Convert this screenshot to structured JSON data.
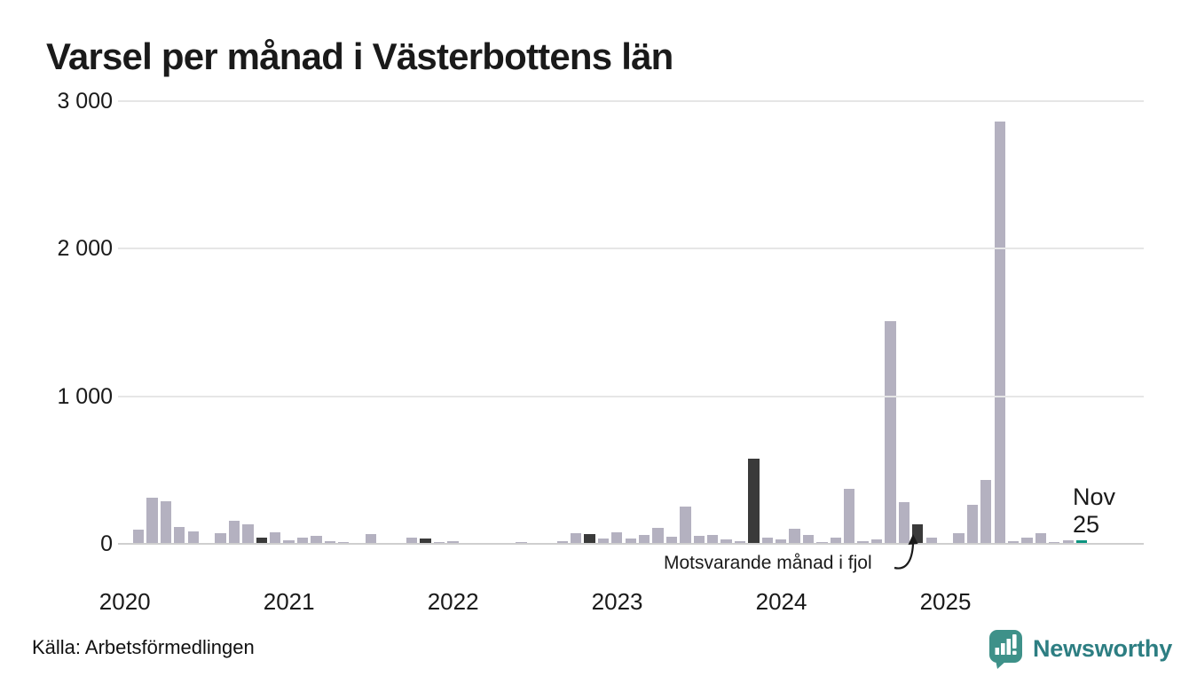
{
  "chart_data": {
    "type": "bar",
    "title": "Varsel per månad i Västerbottens län",
    "source": "Källa: Arbetsförmedlingen",
    "brand": "Newsworthy",
    "ylim": [
      0,
      3000
    ],
    "grid": "horizontal",
    "y_axis": {
      "max": 3000,
      "ticks": [
        {
          "value": 3000,
          "label": "3 000"
        },
        {
          "value": 2000,
          "label": "2 000"
        },
        {
          "value": 1000,
          "label": "1 000"
        },
        {
          "value": 0,
          "label": "0"
        }
      ]
    },
    "x_axis": {
      "total_slots": 75,
      "year_ticks": [
        {
          "label": "2020",
          "slot": 0
        },
        {
          "label": "2021",
          "slot": 12
        },
        {
          "label": "2022",
          "slot": 24
        },
        {
          "label": "2023",
          "slot": 36
        },
        {
          "label": "2024",
          "slot": 48
        },
        {
          "label": "2025",
          "slot": 60
        }
      ]
    },
    "annotation": {
      "text": "Motsvarande månad i fjol"
    },
    "current_label": {
      "line1": "Nov",
      "line2": "25"
    },
    "colors": {
      "bar_default": "#b4b1c0",
      "bar_november": "#3a3a3a",
      "bar_current": "#0c9480",
      "gridline": "#e6e6e6",
      "baseline": "#cfcfcf",
      "brand_teal": "#3e9189",
      "brand_text": "#2d7e82",
      "text": "#1a1a1a"
    },
    "months": [
      {
        "label": "Jan 2020",
        "value": 0,
        "kind": "normal"
      },
      {
        "label": "Feb 2020",
        "value": 95,
        "kind": "normal"
      },
      {
        "label": "Mar 2020",
        "value": 310,
        "kind": "normal"
      },
      {
        "label": "Apr 2020",
        "value": 290,
        "kind": "normal"
      },
      {
        "label": "Maj 2020",
        "value": 115,
        "kind": "normal"
      },
      {
        "label": "Jun 2020",
        "value": 85,
        "kind": "normal"
      },
      {
        "label": "Jul 2020",
        "value": 0,
        "kind": "normal"
      },
      {
        "label": "Aug 2020",
        "value": 75,
        "kind": "normal"
      },
      {
        "label": "Sep 2020",
        "value": 155,
        "kind": "normal"
      },
      {
        "label": "Okt 2020",
        "value": 130,
        "kind": "normal"
      },
      {
        "label": "Nov 2020",
        "value": 40,
        "kind": "nov"
      },
      {
        "label": "Dec 2020",
        "value": 80,
        "kind": "normal"
      },
      {
        "label": "Jan 2021",
        "value": 25,
        "kind": "normal"
      },
      {
        "label": "Feb 2021",
        "value": 45,
        "kind": "normal"
      },
      {
        "label": "Mar 2021",
        "value": 55,
        "kind": "normal"
      },
      {
        "label": "Apr 2021",
        "value": 20,
        "kind": "normal"
      },
      {
        "label": "Maj 2021",
        "value": 10,
        "kind": "normal"
      },
      {
        "label": "Jun 2021",
        "value": 0,
        "kind": "normal"
      },
      {
        "label": "Jul 2021",
        "value": 65,
        "kind": "normal"
      },
      {
        "label": "Aug 2021",
        "value": 0,
        "kind": "normal"
      },
      {
        "label": "Sep 2021",
        "value": 8,
        "kind": "normal"
      },
      {
        "label": "Okt 2021",
        "value": 45,
        "kind": "normal"
      },
      {
        "label": "Nov 2021",
        "value": 35,
        "kind": "nov"
      },
      {
        "label": "Dec 2021",
        "value": 15,
        "kind": "normal"
      },
      {
        "label": "Jan 2022",
        "value": 20,
        "kind": "normal"
      },
      {
        "label": "Feb 2022",
        "value": 0,
        "kind": "normal"
      },
      {
        "label": "Mar 2022",
        "value": 8,
        "kind": "normal"
      },
      {
        "label": "Apr 2022",
        "value": 0,
        "kind": "normal"
      },
      {
        "label": "Maj 2022",
        "value": 0,
        "kind": "normal"
      },
      {
        "label": "Jun 2022",
        "value": 12,
        "kind": "normal"
      },
      {
        "label": "Jul 2022",
        "value": 8,
        "kind": "normal"
      },
      {
        "label": "Aug 2022",
        "value": 5,
        "kind": "normal"
      },
      {
        "label": "Sep 2022",
        "value": 18,
        "kind": "normal"
      },
      {
        "label": "Okt 2022",
        "value": 70,
        "kind": "normal"
      },
      {
        "label": "Nov 2022",
        "value": 65,
        "kind": "nov"
      },
      {
        "label": "Dec 2022",
        "value": 36,
        "kind": "normal"
      },
      {
        "label": "Jan 2023",
        "value": 80,
        "kind": "normal"
      },
      {
        "label": "Feb 2023",
        "value": 36,
        "kind": "normal"
      },
      {
        "label": "Mar 2023",
        "value": 60,
        "kind": "normal"
      },
      {
        "label": "Apr 2023",
        "value": 110,
        "kind": "normal"
      },
      {
        "label": "Maj 2023",
        "value": 46,
        "kind": "normal"
      },
      {
        "label": "Jun 2023",
        "value": 255,
        "kind": "normal"
      },
      {
        "label": "Jul 2023",
        "value": 57,
        "kind": "normal"
      },
      {
        "label": "Aug 2023",
        "value": 60,
        "kind": "normal"
      },
      {
        "label": "Sep 2023",
        "value": 28,
        "kind": "normal"
      },
      {
        "label": "Okt 2023",
        "value": 16,
        "kind": "normal"
      },
      {
        "label": "Nov 2023",
        "value": 580,
        "kind": "nov"
      },
      {
        "label": "Dec 2023",
        "value": 40,
        "kind": "normal"
      },
      {
        "label": "Jan 2024",
        "value": 30,
        "kind": "normal"
      },
      {
        "label": "Feb 2024",
        "value": 100,
        "kind": "normal"
      },
      {
        "label": "Mar 2024",
        "value": 60,
        "kind": "normal"
      },
      {
        "label": "Apr 2024",
        "value": 10,
        "kind": "normal"
      },
      {
        "label": "Maj 2024",
        "value": 40,
        "kind": "normal"
      },
      {
        "label": "Jun 2024",
        "value": 370,
        "kind": "normal"
      },
      {
        "label": "Jul 2024",
        "value": 16,
        "kind": "normal"
      },
      {
        "label": "Aug 2024",
        "value": 30,
        "kind": "normal"
      },
      {
        "label": "Sep 2024",
        "value": 1510,
        "kind": "normal"
      },
      {
        "label": "Okt 2024",
        "value": 280,
        "kind": "normal"
      },
      {
        "label": "Nov 2024",
        "value": 130,
        "kind": "nov"
      },
      {
        "label": "Dec 2024",
        "value": 40,
        "kind": "normal"
      },
      {
        "label": "Jan 2025",
        "value": 0,
        "kind": "normal"
      },
      {
        "label": "Feb 2025",
        "value": 75,
        "kind": "normal"
      },
      {
        "label": "Mar 2025",
        "value": 265,
        "kind": "normal"
      },
      {
        "label": "Apr 2025",
        "value": 430,
        "kind": "normal"
      },
      {
        "label": "Maj 2025",
        "value": 2860,
        "kind": "normal"
      },
      {
        "label": "Jun 2025",
        "value": 20,
        "kind": "normal"
      },
      {
        "label": "Jul 2025",
        "value": 40,
        "kind": "normal"
      },
      {
        "label": "Aug 2025",
        "value": 72,
        "kind": "normal"
      },
      {
        "label": "Sep 2025",
        "value": 15,
        "kind": "normal"
      },
      {
        "label": "Okt 2025",
        "value": 26,
        "kind": "normal"
      },
      {
        "label": "Nov 2025",
        "value": 25,
        "kind": "current"
      }
    ]
  }
}
